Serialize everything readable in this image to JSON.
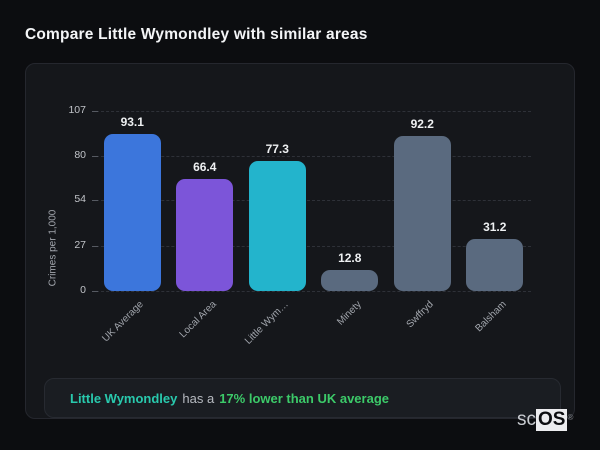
{
  "page": {
    "title": "Compare Little Wymondley with similar areas",
    "background_color": "#0c0d10",
    "logo": {
      "prefix": "sc",
      "suffix": "OS",
      "registered": "®"
    }
  },
  "chart_data": {
    "type": "bar",
    "title": "",
    "categories": [
      "UK Average",
      "Local Area",
      "Little Wym…",
      "Minety",
      "Swffryd",
      "Balsham"
    ],
    "values": [
      93.1,
      66.4,
      77.3,
      12.8,
      92.2,
      31.2
    ],
    "value_labels": [
      "93.1",
      "66.4",
      "77.3",
      "12.8",
      "92.2",
      "31.2"
    ],
    "bar_colors": [
      "#3c76dc",
      "#7c55d9",
      "#23b4cc",
      "#5a6a7f",
      "#5a6a7f",
      "#5a6a7f"
    ],
    "ylabel": "Crimes per 1,000",
    "xlabel": "",
    "yticks": [
      107,
      80,
      54,
      27,
      0
    ],
    "ylim": [
      0,
      107
    ],
    "grid": "dashed-horizontal",
    "legend_position": "none"
  },
  "annotation": {
    "area_name": "Little Wymondley",
    "connector_text": "has a",
    "highlight_text": "17% lower than UK average",
    "area_color": "#29c9ad",
    "highlight_color": "#3cca69"
  }
}
